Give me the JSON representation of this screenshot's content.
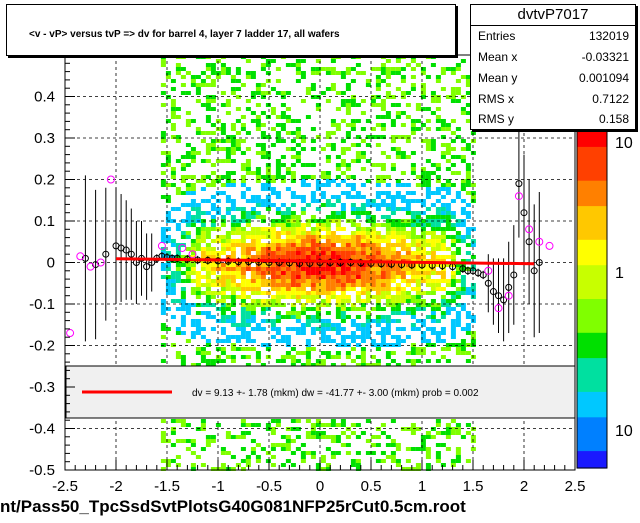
{
  "title": "<v - vP>       versus  tvP =>  dv for barrel 4, layer 7 ladder 17, all wafers",
  "stats": {
    "name": "dvtvP7017",
    "rows": [
      {
        "key": "Entries",
        "value": "132019"
      },
      {
        "key": "Mean x",
        "value": "-0.03321"
      },
      {
        "key": "Mean y",
        "value": "0.001094"
      },
      {
        "key": "RMS x",
        "value": "0.7122"
      },
      {
        "key": "RMS y",
        "value": "0.158"
      }
    ]
  },
  "fit_text": "dv =    9.13 +-  1.78 (mkm) dw =  -41.77 +-  3.00 (mkm) prob = 0.002",
  "footer": "nt/Pass50_TpcSsdSvtPlotsG40G081NFP25rCut0.5cm.root",
  "colorbar_labels": [
    "10",
    "1",
    "10"
  ],
  "colors": {
    "fit_line": "#ff0000",
    "profile_markers": "#000000",
    "alt_markers": "#ff00ff",
    "fit_band": "#f0f0f0"
  },
  "chart_data": {
    "type": "heatmap",
    "xlim": [
      -2.5,
      2.5
    ],
    "ylim": [
      -0.5,
      0.5
    ],
    "x_ticks": [
      "-2.5",
      "-2",
      "-1.5",
      "-1",
      "-0.5",
      "0",
      "0.5",
      "1",
      "1.5",
      "2",
      "2.5"
    ],
    "y_ticks": [
      "-0.5",
      "-0.4",
      "-0.3",
      "-0.2",
      "-0.1",
      "0",
      "0.1",
      "0.2",
      "0.3",
      "0.4"
    ],
    "grid": true,
    "log_z": true,
    "fit_line": {
      "x": [
        -2.0,
        2.1
      ],
      "y": [
        0.009,
        -0.003
      ]
    },
    "profile": {
      "x": [
        -2.3,
        -2.2,
        -2.1,
        -2.0,
        -1.95,
        -1.9,
        -1.85,
        -1.8,
        -1.75,
        -1.7,
        -1.65,
        -1.6,
        -1.55,
        -1.5,
        -1.45,
        -1.4,
        -1.3,
        -1.2,
        -1.1,
        -1.0,
        -0.9,
        -0.8,
        -0.7,
        -0.6,
        -0.5,
        -0.4,
        -0.3,
        -0.2,
        -0.1,
        0.0,
        0.1,
        0.2,
        0.3,
        0.4,
        0.5,
        0.6,
        0.7,
        0.8,
        0.9,
        1.0,
        1.1,
        1.2,
        1.3,
        1.4,
        1.45,
        1.5,
        1.55,
        1.6,
        1.65,
        1.7,
        1.75,
        1.8,
        1.85,
        1.9,
        1.95,
        2.0,
        2.05,
        2.1,
        2.15
      ],
      "y": [
        0.01,
        -0.005,
        0.02,
        0.04,
        0.035,
        0.03,
        0.02,
        0.0,
        0.01,
        -0.01,
        0.0,
        0.01,
        0.015,
        0.012,
        0.01,
        0.01,
        0.008,
        0.006,
        0.005,
        0.004,
        0.003,
        0.002,
        0.002,
        0.001,
        0.0,
        0.0,
        -0.001,
        -0.002,
        -0.002,
        0.0,
        0.0,
        0.0,
        0.0,
        -0.001,
        -0.002,
        -0.003,
        -0.004,
        -0.005,
        -0.006,
        -0.006,
        -0.007,
        -0.008,
        -0.01,
        -0.015,
        -0.02,
        -0.02,
        -0.025,
        -0.03,
        -0.05,
        -0.07,
        -0.08,
        -0.09,
        -0.06,
        -0.03,
        0.19,
        0.12,
        0.05,
        -0.02,
        0.0
      ]
    },
    "profile_alt": {
      "x": [
        -2.45,
        -2.35,
        -2.25,
        -2.15,
        -2.05,
        -1.55,
        -1.35,
        -1.25,
        1.65,
        1.75,
        1.85,
        1.95,
        2.05,
        2.15,
        2.25
      ],
      "y": [
        -0.17,
        0.015,
        -0.01,
        0.0,
        0.2,
        0.04,
        0.035,
        0.02,
        -0.02,
        -0.11,
        -0.08,
        0.16,
        0.08,
        0.05,
        0.04
      ]
    }
  }
}
